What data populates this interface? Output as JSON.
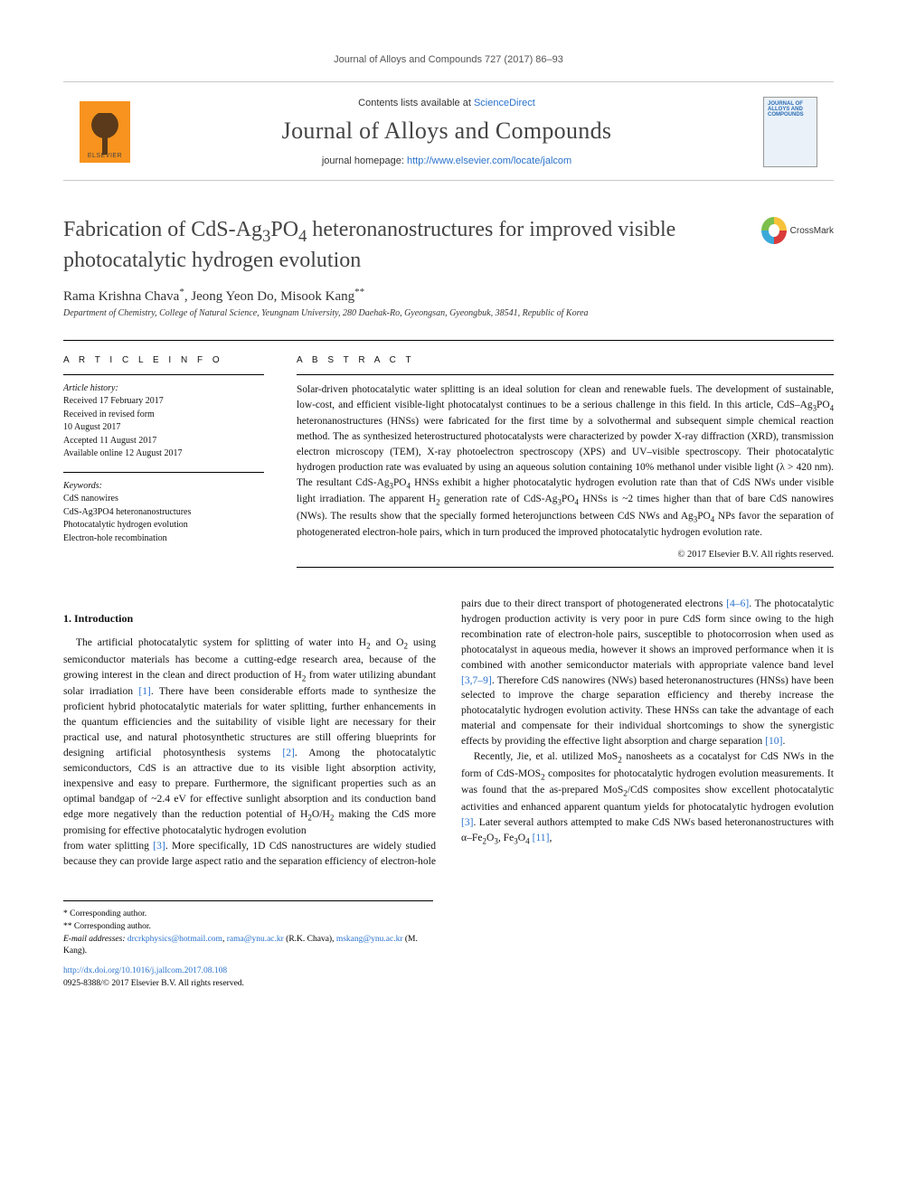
{
  "running_head": "Journal of Alloys and Compounds 727 (2017) 86–93",
  "masthead": {
    "contents_prefix": "Contents lists available at ",
    "contents_link": "ScienceDirect",
    "journal_name": "Journal of Alloys and Compounds",
    "homepage_prefix": "journal homepage: ",
    "homepage_url": "http://www.elsevier.com/locate/jalcom",
    "publisher_name": "ELSEVIER",
    "cover_line1": "JOURNAL OF",
    "cover_line2": "ALLOYS AND COMPOUNDS"
  },
  "crossmark_label": "CrossMark",
  "article": {
    "title_html": "Fabrication of CdS-Ag<sub>3</sub>PO<sub>4</sub> heteronanostructures for improved visible photocatalytic hydrogen evolution",
    "authors_html": "Rama Krishna Chava<sup>*</sup>, Jeong Yeon Do, Misook Kang<sup>**</sup>",
    "affiliation": "Department of Chemistry, College of Natural Science, Yeungnam University, 280 Daehak-Ro, Gyeongsan, Gyeongbuk, 38541, Republic of Korea"
  },
  "info": {
    "heading": "A R T I C L E   I N F O",
    "history_label": "Article history:",
    "history": [
      "Received 17 February 2017",
      "Received in revised form",
      "10 August 2017",
      "Accepted 11 August 2017",
      "Available online 12 August 2017"
    ],
    "keywords_label": "Keywords:",
    "keywords": [
      "CdS nanowires",
      "CdS-Ag3PO4 heteronanostructures",
      "Photocatalytic hydrogen evolution",
      "Electron-hole recombination"
    ]
  },
  "abstract": {
    "heading": "A B S T R A C T",
    "text_html": "Solar-driven photocatalytic water splitting is an ideal solution for clean and renewable fuels. The development of sustainable, low-cost, and efficient visible-light photocatalyst continues to be a serious challenge in this field. In this article, CdS–Ag<sub>3</sub>PO<sub>4</sub> heteronanostructures (HNSs) were fabricated for the first time by a solvothermal and subsequent simple chemical reaction method. The as synthesized heterostructured photocatalysts were characterized by powder X-ray diffraction (XRD), transmission electron microscopy (TEM), X-ray photoelectron spectroscopy (XPS) and UV–visible spectroscopy. Their photocatalytic hydrogen production rate was evaluated by using an aqueous solution containing 10% methanol under visible light (λ > 420 nm). The resultant CdS-Ag<sub>3</sub>PO<sub>4</sub> HNSs exhibit a higher photocatalytic hydrogen evolution rate than that of CdS NWs under visible light irradiation. The apparent H<sub>2</sub> generation rate of CdS-Ag<sub>3</sub>PO<sub>4</sub> HNSs is ~2 times higher than that of bare CdS nanowires (NWs). The results show that the specially formed heterojunctions between CdS NWs and Ag<sub>3</sub>PO<sub>4</sub> NPs favor the separation of photogenerated electron-hole pairs, which in turn produced the improved photocatalytic hydrogen evolution rate.",
    "copyright": "© 2017 Elsevier B.V. All rights reserved."
  },
  "section1": {
    "heading": "1. Introduction",
    "p1_html": "The artificial photocatalytic system for splitting of water into H<sub>2</sub> and O<sub>2</sub> using semiconductor materials has become a cutting-edge research area, because of the growing interest in the clean and direct production of H<sub>2</sub> from water utilizing abundant solar irradiation <a class=\"ref\" href=\"#\">[1]</a>. There have been considerable efforts made to synthesize the proficient hybrid photocatalytic materials for water splitting, further enhancements in the quantum efficiencies and the suitability of visible light are necessary for their practical use, and natural photosynthetic structures are still offering blueprints for designing artificial photosynthesis systems <a class=\"ref\" href=\"#\">[2]</a>. Among the photocatalytic semiconductors, CdS is an attractive due to its visible light absorption activity, inexpensive and easy to prepare. Furthermore, the significant properties such as an optimal bandgap of ~2.4 eV for effective sunlight absorption and its conduction band edge more negatively than the reduction potential of H<sub>2</sub>O/H<sub>2</sub> making the CdS more promising for effective photocatalytic hydrogen evolution",
    "p2_html": "from water splitting <a class=\"ref\" href=\"#\">[3]</a>. More specifically, 1D CdS nanostructures are widely studied because they can provide large aspect ratio and the separation efficiency of electron-hole pairs due to their direct transport of photogenerated electrons <a class=\"ref\" href=\"#\">[4–6]</a>. The photocatalytic hydrogen production activity is very poor in pure CdS form since owing to the high recombination rate of electron-hole pairs, susceptible to photocorrosion when used as photocatalyst in aqueous media, however it shows an improved performance when it is combined with another semiconductor materials with appropriate valence band level <a class=\"ref\" href=\"#\">[3,7–9]</a>. Therefore CdS nanowires (NWs) based heteronanostructures (HNSs) have been selected to improve the charge separation efficiency and thereby increase the photocatalytic hydrogen evolution activity. These HNSs can take the advantage of each material and compensate for their individual shortcomings to show the synergistic effects by providing the effective light absorption and charge separation <a class=\"ref\" href=\"#\">[10]</a>.",
    "p3_html": "Recently, Jie, et al. utilized MoS<sub>2</sub> nanosheets as a cocatalyst for CdS NWs in the form of CdS-MOS<sub>2</sub> composites for photocatalytic hydrogen evolution measurements. It was found that the as-prepared MoS<sub>2</sub>/CdS composites show excellent photocatalytic activities and enhanced apparent quantum yields for photocatalytic hydrogen evolution <a class=\"ref\" href=\"#\">[3]</a>. Later several authors attempted to make CdS NWs based heteronanostructures with α–Fe<sub>2</sub>O<sub>3</sub>, Fe<sub>3</sub>O<sub>4</sub> <a class=\"ref\" href=\"#\">[11]</a>,"
  },
  "footer": {
    "corr1": "* Corresponding author.",
    "corr2": "** Corresponding author.",
    "email_label": "E-mail addresses:",
    "emails_html": "<a href=\"#\">drcrkphysics@hotmail.com</a>, <a href=\"#\">rama@ynu.ac.kr</a> (R.K. Chava), <a href=\"#\">mskang@ynu.ac.kr</a> (M. Kang).",
    "doi": "http://dx.doi.org/10.1016/j.jallcom.2017.08.108",
    "issn_line": "0925-8388/© 2017 Elsevier B.V. All rights reserved."
  },
  "colors": {
    "link": "#2a72cc",
    "elsevier_orange": "#f7931e",
    "text": "#111"
  }
}
